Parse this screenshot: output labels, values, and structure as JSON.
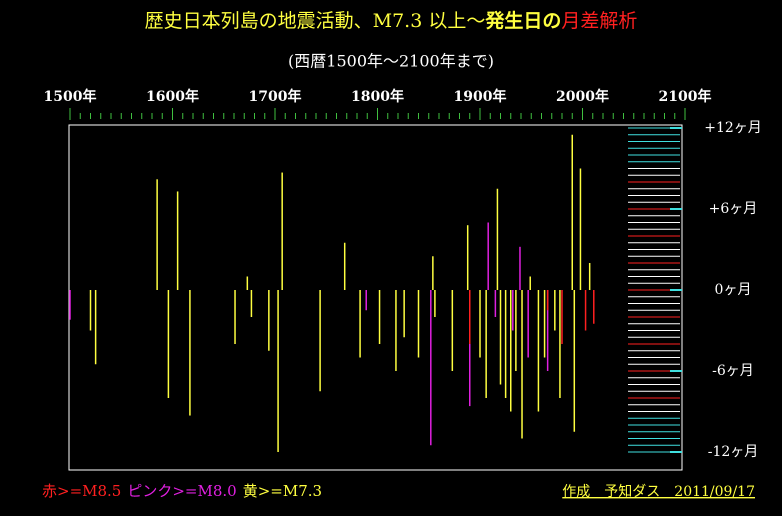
{
  "chart_data": {
    "type": "spike",
    "title_parts": [
      "歴史日本列島の地震活動、M7.3 以上～",
      "発生日の",
      "月差解析"
    ],
    "subtitle": "(西暦1500年～2100年まで)",
    "credit": "作成　予知ダス　2011/09/17",
    "xlim": [
      1500,
      2100
    ],
    "xticks": [
      {
        "value": 1500,
        "label": "1500年"
      },
      {
        "value": 1600,
        "label": "1600年"
      },
      {
        "value": 1700,
        "label": "1700年"
      },
      {
        "value": 1800,
        "label": "1800年"
      },
      {
        "value": 1900,
        "label": "1900年"
      },
      {
        "value": 2000,
        "label": "2000年"
      },
      {
        "value": 2100,
        "label": "2100年"
      }
    ],
    "ylim": [
      -12,
      12
    ],
    "yticks": [
      {
        "value": 12,
        "label": "+12ヶ月"
      },
      {
        "value": 6,
        "label": "+6ヶ月"
      },
      {
        "value": 0,
        "label": "0ヶ月"
      },
      {
        "value": -6,
        "label": "-6ヶ月"
      },
      {
        "value": -12,
        "label": "-12ヶ月"
      }
    ],
    "series": [
      {
        "name": "赤>=M8.5",
        "color": "#ff2020",
        "x": [
          1890,
          1966,
          1980,
          2003,
          2011
        ],
        "values": [
          -4,
          -1.5,
          -4,
          -3,
          -2.5
        ]
      },
      {
        "name": "ピンク>=M8.0",
        "color": "#e020e0",
        "x": [
          1500,
          1789,
          1852,
          1890,
          1908,
          1915,
          1932,
          1939,
          1947,
          1966
        ],
        "values": [
          -2.2,
          -1.5,
          -11.5,
          -8.6,
          5,
          -2,
          -3,
          3.2,
          -5,
          -6
        ]
      },
      {
        "name": "黄>=M7.3",
        "color": "#ffff40",
        "x": [
          1520,
          1525,
          1585,
          1596,
          1605,
          1617,
          1661,
          1673,
          1677,
          1694,
          1703,
          1707,
          1744,
          1768,
          1783,
          1802,
          1818,
          1826,
          1840,
          1854,
          1856,
          1873,
          1888,
          1890,
          1900,
          1906,
          1917,
          1920,
          1925,
          1930,
          1935,
          1941,
          1949,
          1957,
          1963,
          1973,
          1978,
          1990,
          1992,
          1998,
          2007
        ],
        "values": [
          -3,
          -5.5,
          8.2,
          -8,
          7.3,
          -9.3,
          -4,
          1,
          -2,
          -4.5,
          -12,
          8.7,
          -7.5,
          3.5,
          -5,
          -4,
          -6,
          -3.5,
          -5,
          2.5,
          -2,
          -6,
          4.8,
          -7,
          -5,
          -8,
          7.5,
          -7,
          -8,
          -9,
          -6,
          -11,
          1,
          -9,
          -5,
          -3,
          -8,
          11.5,
          -10.5,
          9,
          2
        ]
      }
    ]
  }
}
